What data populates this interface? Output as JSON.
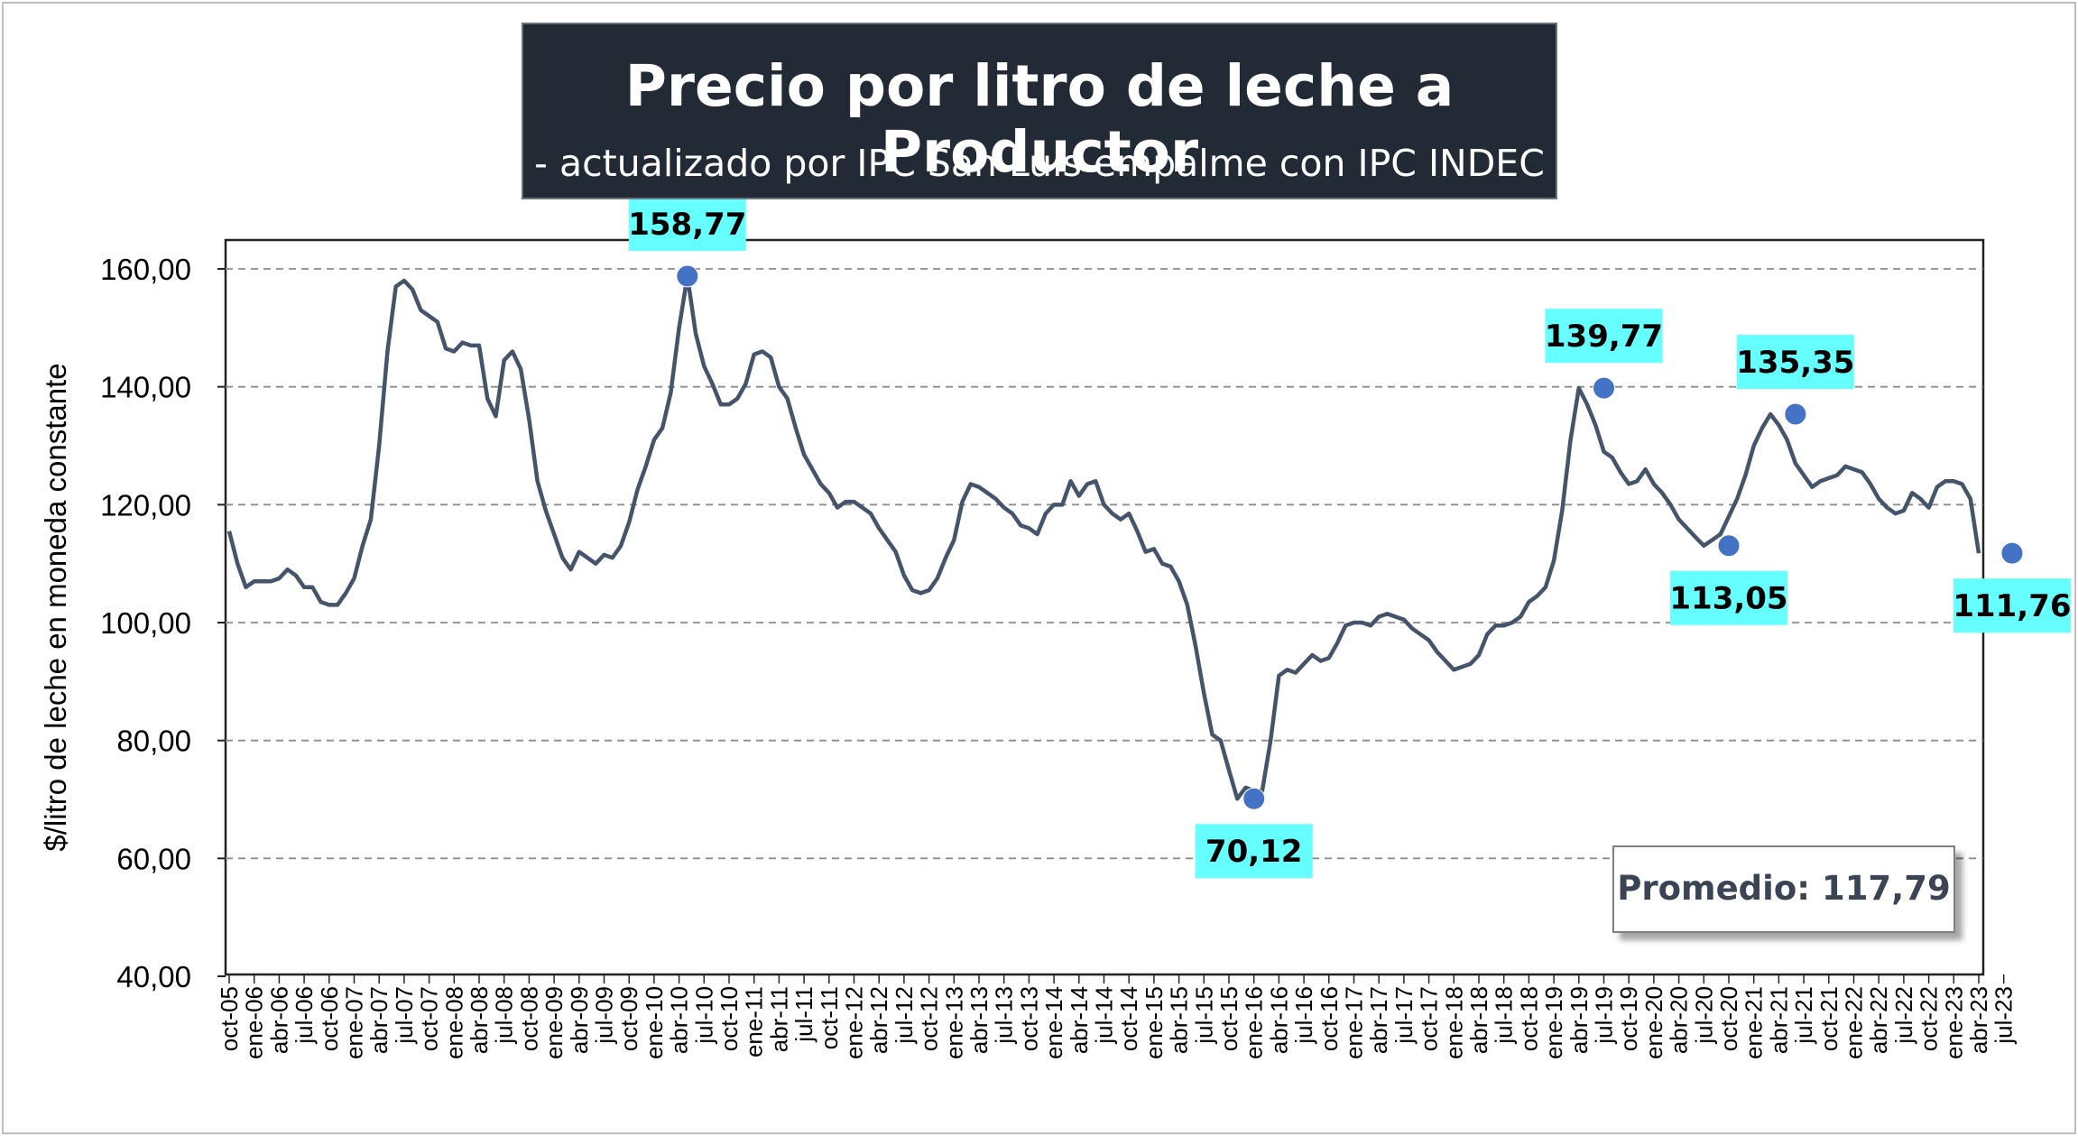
{
  "title": "Precio por litro de leche a Productor",
  "subtitle": "- actualizado por IPC San Luis empalme con IPC INDEC -",
  "average_label": "Promedio: 117,79",
  "colors": {
    "line": "#44546a",
    "marker": "#4472c4",
    "label_bg": "#66ffff",
    "title_bg": "#222a35"
  },
  "chart_data": {
    "type": "line",
    "title": "Precio por litro de leche a Productor",
    "subtitle": "- actualizado por IPC San Luis empalme con IPC INDEC -",
    "ylabel": "$/litro de leche en moneda constante",
    "xlabel": "",
    "ylim": [
      40,
      160
    ],
    "yticks": [
      "40,00",
      "60,00",
      "80,00",
      "100,00",
      "120,00",
      "140,00",
      "160,00"
    ],
    "grid": "horizontal dashed",
    "xtick_labels": [
      "oct-05",
      "ene-06",
      "abr-06",
      "jul-06",
      "oct-06",
      "ene-07",
      "abr-07",
      "jul-07",
      "oct-07",
      "ene-08",
      "abr-08",
      "jul-08",
      "oct-08",
      "ene-09",
      "abr-09",
      "jul-09",
      "oct-09",
      "ene-10",
      "abr-10",
      "jul-10",
      "oct-10",
      "ene-11",
      "abr-11",
      "jul-11",
      "oct-11",
      "ene-12",
      "abr-12",
      "jul-12",
      "oct-12",
      "ene-13",
      "abr-13",
      "jul-13",
      "oct-13",
      "ene-14",
      "abr-14",
      "jul-14",
      "oct-14",
      "ene-15",
      "abr-15",
      "jul-15",
      "oct-15",
      "ene-16",
      "abr-16",
      "jul-16",
      "oct-16",
      "ene-17",
      "abr-17",
      "jul-17",
      "oct-17",
      "ene-18",
      "abr-18",
      "jul-18",
      "oct-18",
      "ene-19",
      "abr-19",
      "jul-19",
      "oct-19",
      "ene-20",
      "abr-20",
      "jul-20",
      "oct-20",
      "ene-21",
      "abr-21",
      "jul-21",
      "oct-21",
      "ene-22",
      "abr-22",
      "jul-22",
      "oct-22",
      "ene-23",
      "abr-23",
      "jul-23"
    ],
    "series": [
      {
        "values": [
          115.5,
          110,
          106,
          107,
          107,
          107,
          107.5,
          109,
          108,
          106,
          106,
          103.5,
          103,
          103,
          105,
          107.5,
          113,
          117.5,
          130,
          146,
          157,
          158,
          156.5,
          153,
          152,
          151,
          146.5,
          146,
          147.5,
          147,
          147,
          138,
          135,
          144.5,
          146,
          143,
          134.5,
          124,
          119,
          115,
          111,
          109,
          112,
          111,
          110,
          111.5,
          111,
          113,
          117,
          122.5,
          126.5,
          131,
          133,
          139,
          150,
          158.77,
          149,
          143.5,
          140.5,
          137,
          137,
          138,
          140.5,
          145.5,
          146,
          145,
          140,
          138,
          133,
          128.5,
          126,
          123.5,
          122,
          119.5,
          120.5,
          120.5,
          119.5,
          118.5,
          116,
          114,
          112,
          108,
          105.5,
          105,
          105.5,
          107.5,
          111,
          114,
          120.5,
          123.5,
          123,
          122,
          121,
          119.5,
          118.5,
          116.5,
          116,
          115,
          118.5,
          120,
          120,
          124,
          121.5,
          123.5,
          124,
          120,
          118.5,
          117.5,
          118.5,
          115.5,
          112,
          112.5,
          110,
          109.5,
          107,
          103,
          96,
          88,
          81,
          80,
          75,
          70.12,
          72,
          71.5,
          71.5,
          80,
          91,
          92,
          91.5,
          93,
          94.5,
          93.5,
          94,
          96.5,
          99.5,
          100,
          100,
          99.5,
          101,
          101.5,
          101,
          100.5,
          99,
          98,
          97,
          95,
          93.5,
          92,
          92.5,
          93,
          94.5,
          98,
          99.5,
          99.5,
          100,
          101,
          103.5,
          104.5,
          106,
          110.5,
          119,
          131,
          139.77,
          137,
          133.5,
          129,
          128,
          125.5,
          123.5,
          124,
          126,
          123.5,
          122,
          120,
          117.5,
          116,
          114.5,
          113.05,
          114,
          115,
          118,
          121,
          125,
          130,
          133,
          135.35,
          133.5,
          131,
          127,
          125,
          123,
          124,
          124.5,
          125,
          126.5,
          126,
          125.5,
          123.5,
          121,
          119.5,
          118.5,
          119,
          122,
          121,
          119.5,
          123,
          124,
          124,
          123.5,
          121,
          111.76
        ]
      }
    ],
    "annotations": [
      {
        "label": "158,77",
        "index": 55,
        "value": 158.77,
        "position": "above"
      },
      {
        "label": "70,12",
        "index": 123,
        "value": 70.12,
        "position": "below"
      },
      {
        "label": "139,77",
        "index": 165,
        "value": 139.77,
        "position": "above"
      },
      {
        "label": "113,05",
        "index": 180,
        "value": 113.05,
        "position": "below"
      },
      {
        "label": "135,35",
        "index": 188,
        "value": 135.35,
        "position": "above"
      },
      {
        "label": "111,76",
        "index": 214,
        "value": 111.76,
        "position": "below"
      }
    ],
    "average": {
      "label": "Promedio: 117,79",
      "value": 117.79
    }
  }
}
